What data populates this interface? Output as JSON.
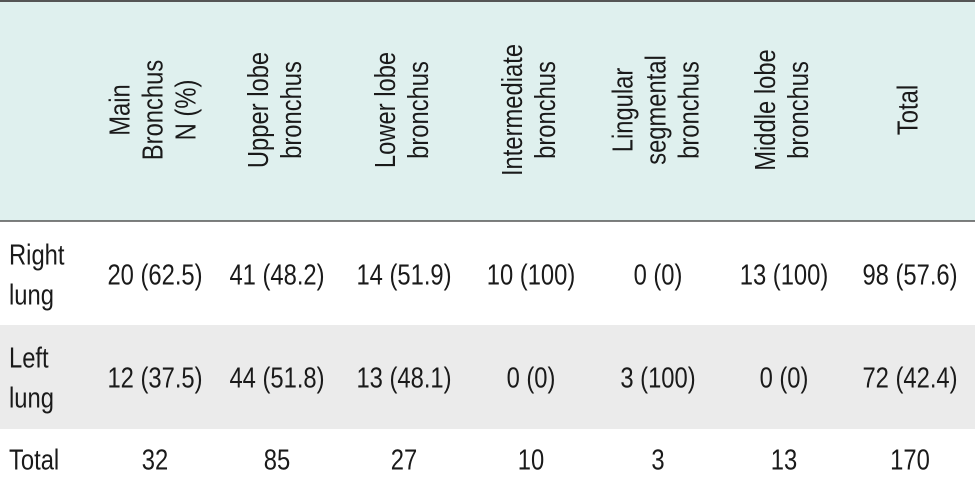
{
  "table": {
    "columns": [
      [
        "Main",
        "Bronchus",
        "N (%)"
      ],
      [
        "Upper lobe",
        "bronchus"
      ],
      [
        "Lower lobe",
        "bronchus"
      ],
      [
        "Intermediate",
        "bronchus"
      ],
      [
        "Lingular",
        "segmental",
        "bronchus"
      ],
      [
        "Middle lobe",
        "bronchus"
      ],
      [
        "Total"
      ]
    ],
    "rows": [
      {
        "label": [
          "Right",
          "lung"
        ],
        "cells": [
          "20 (62.5)",
          "41 (48.2)",
          "14 (51.9)",
          "10 (100)",
          "0 (0)",
          "13 (100)",
          "98 (57.6)"
        ]
      },
      {
        "label": [
          "Left",
          "lung"
        ],
        "cells": [
          "12 (37.5)",
          "44 (51.8)",
          "13 (48.1)",
          "0 (0)",
          "3 (100)",
          "0 (0)",
          "72 (42.4)"
        ]
      },
      {
        "label": [
          "Total"
        ],
        "cells": [
          "32",
          "85",
          "27",
          "10",
          "3",
          "13",
          "170"
        ]
      }
    ]
  }
}
